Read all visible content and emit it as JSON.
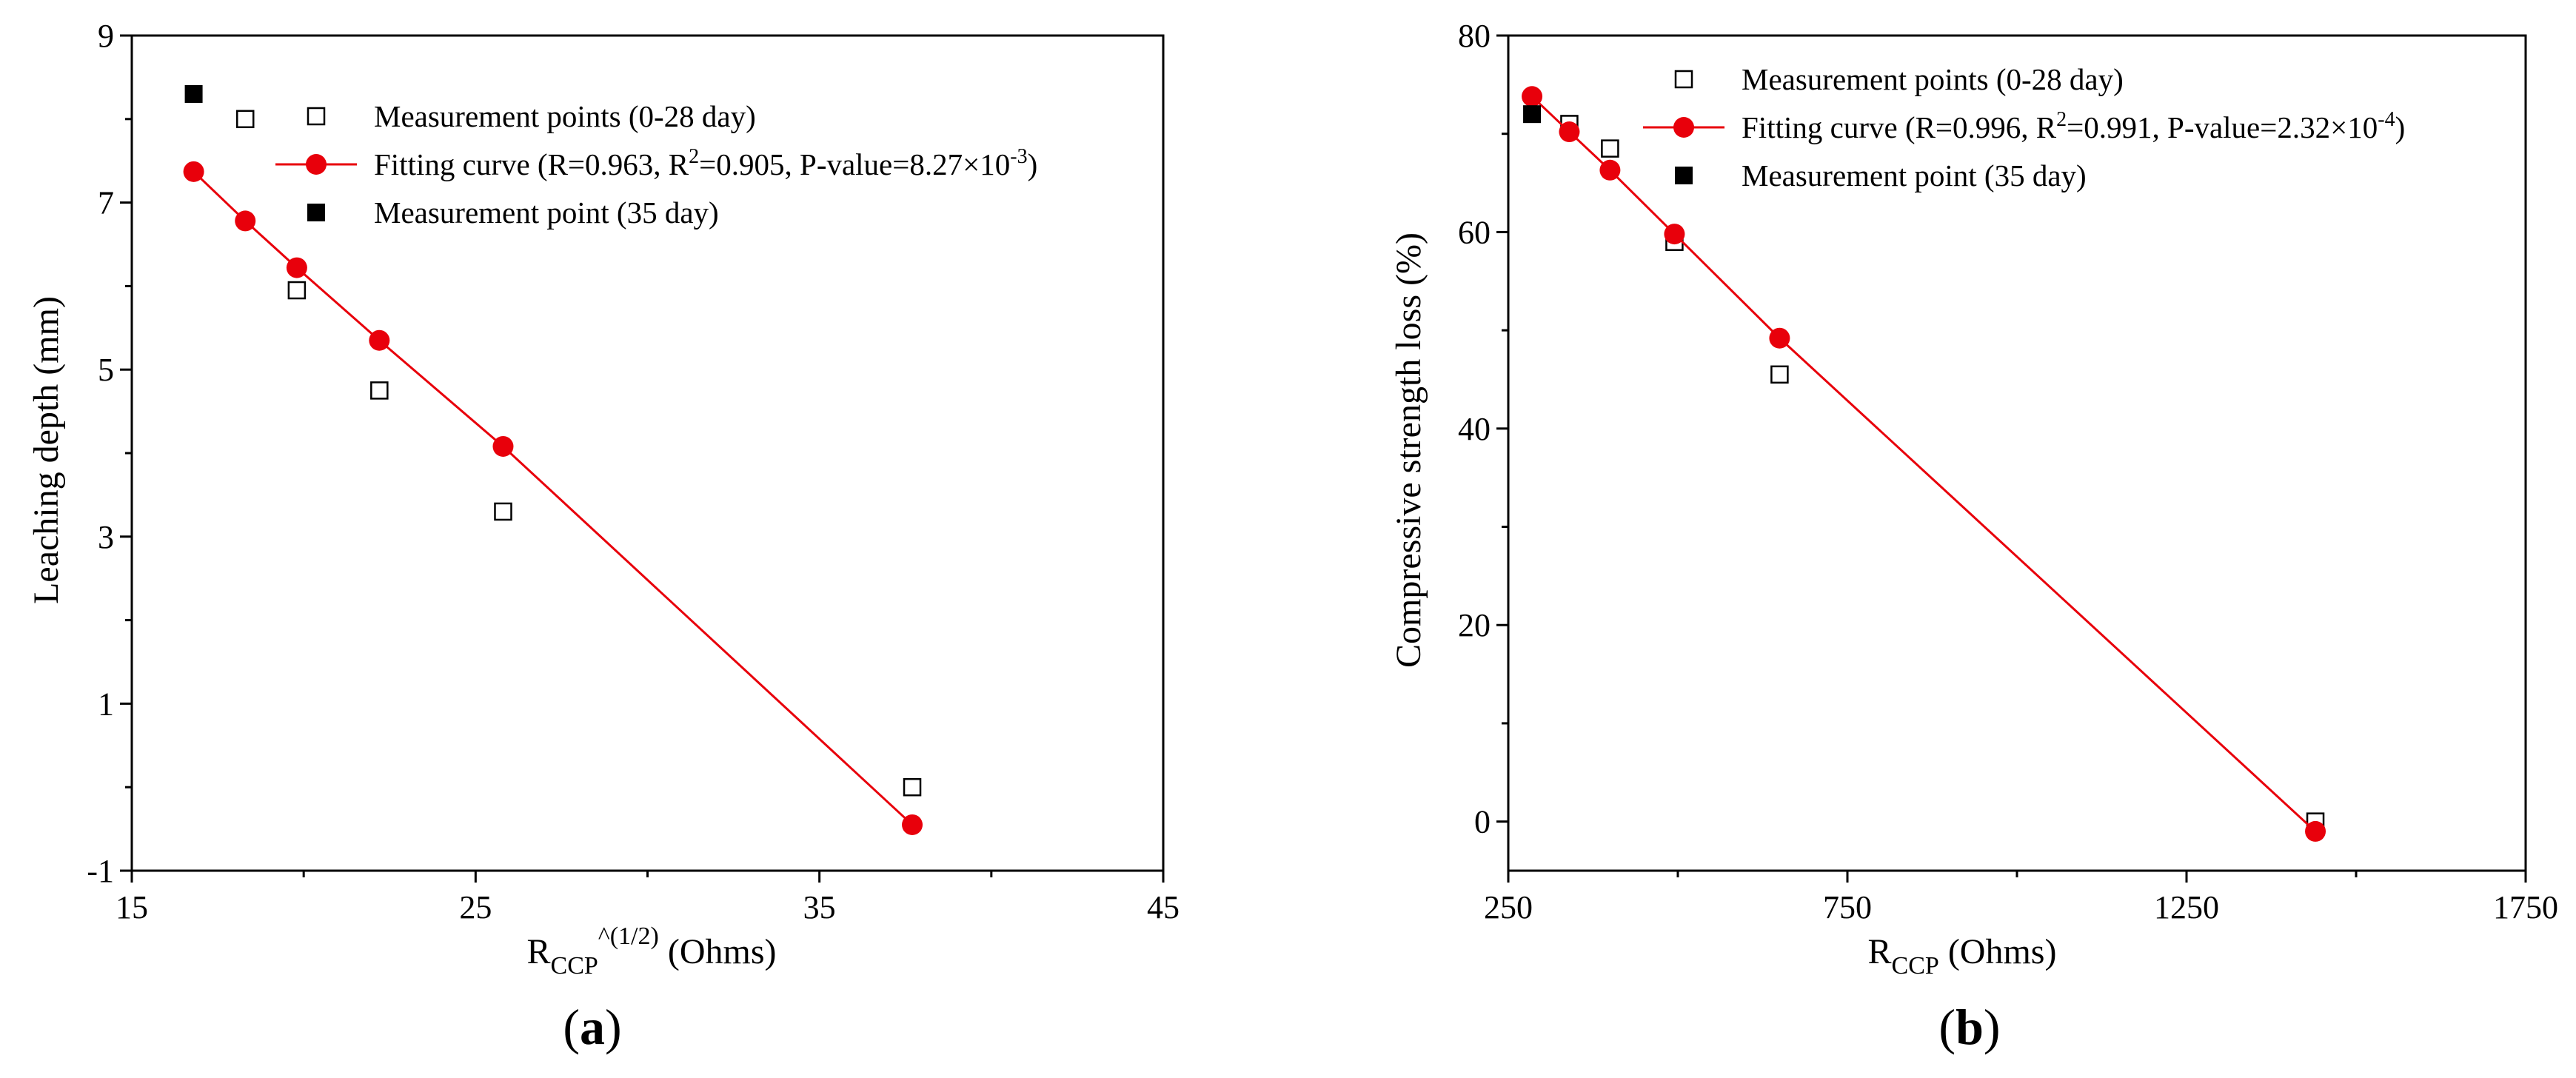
{
  "colors": {
    "fit": "#e8000b",
    "measured_open": "#000000",
    "measured_filled": "#000000"
  },
  "chart_data": [
    {
      "type": "scatter",
      "panel_label": "a",
      "xlabel_main": "R",
      "xlabel_sub": "CCP",
      "xlabel_sup": "^(1/2)",
      "xlabel_unit": " (Ohms)",
      "ylabel": "Leaching depth (mm)",
      "xlim": [
        15,
        45
      ],
      "ylim": [
        -1,
        9
      ],
      "xticks": [
        15,
        25,
        35,
        45
      ],
      "yticks": [
        -1,
        1,
        3,
        5,
        7,
        9
      ],
      "xticks_minor": [
        20,
        30,
        40
      ],
      "yticks_minor": [
        0,
        2,
        4,
        6,
        8
      ],
      "series": [
        {
          "name": "Measurement points (0-28 day)",
          "marker": "square-open",
          "x": [
            18.3,
            19.8,
            22.2,
            25.8,
            37.7
          ],
          "y": [
            8.0,
            5.95,
            4.75,
            3.3,
            0.0
          ]
        },
        {
          "name": "Fitting curve",
          "marker": "circle-filled-line",
          "x": [
            16.8,
            18.3,
            19.8,
            22.2,
            25.8,
            37.7
          ],
          "y": [
            7.37,
            6.78,
            6.22,
            5.35,
            4.08,
            -0.45
          ]
        },
        {
          "name": "Measurement point (35 day)",
          "marker": "square-filled",
          "x": [
            16.8
          ],
          "y": [
            8.3
          ]
        }
      ],
      "legend": {
        "placement": "top-right",
        "items": [
          {
            "marker": "square-open",
            "text": "Measurement points (0-28 day)"
          },
          {
            "marker": "circle-filled-line",
            "text_prefix": "Fitting curve (R=0.963, R",
            "text_sup": "2",
            "text_mid": "=0.905, P-value=8.27×10",
            "text_sup2": "-3",
            "text_suffix": ")"
          },
          {
            "marker": "square-filled",
            "text": "Measurement point (35 day)"
          }
        ]
      }
    },
    {
      "type": "scatter",
      "panel_label": "b",
      "xlabel_main": "R",
      "xlabel_sub": "CCP",
      "xlabel_unit": " (Ohms)",
      "ylabel": "Compressive strength loss (%)",
      "xlim": [
        250,
        1750
      ],
      "ylim": [
        -5,
        80
      ],
      "xticks": [
        250,
        750,
        1250,
        1750
      ],
      "yticks": [
        0,
        20,
        40,
        60,
        80
      ],
      "xticks_minor": [
        500,
        1000,
        1500
      ],
      "yticks_minor": [
        10,
        30,
        50,
        70
      ],
      "series": [
        {
          "name": "Measurement points (0-28 day)",
          "marker": "square-open",
          "x": [
            340,
            400,
            495,
            650,
            1440
          ],
          "y": [
            71.0,
            68.5,
            59.0,
            45.5,
            0.0
          ]
        },
        {
          "name": "Fitting curve",
          "marker": "circle-filled-line",
          "x": [
            285,
            340,
            400,
            495,
            650,
            1440
          ],
          "y": [
            73.8,
            70.2,
            66.3,
            59.8,
            49.2,
            -1.0
          ]
        },
        {
          "name": "Measurement point (35 day)",
          "marker": "square-filled",
          "x": [
            285
          ],
          "y": [
            72.0
          ]
        }
      ],
      "legend": {
        "placement": "top-right",
        "items": [
          {
            "marker": "square-open",
            "text": "Measurement points (0-28 day)"
          },
          {
            "marker": "circle-filled-line",
            "text_prefix": "Fitting curve (R=0.996, R",
            "text_sup": "2",
            "text_mid": "=0.991, P-value=2.32×10",
            "text_sup2": "-4",
            "text_suffix": ")"
          },
          {
            "marker": "square-filled",
            "text": "Measurement point (35 day)"
          }
        ]
      }
    }
  ]
}
